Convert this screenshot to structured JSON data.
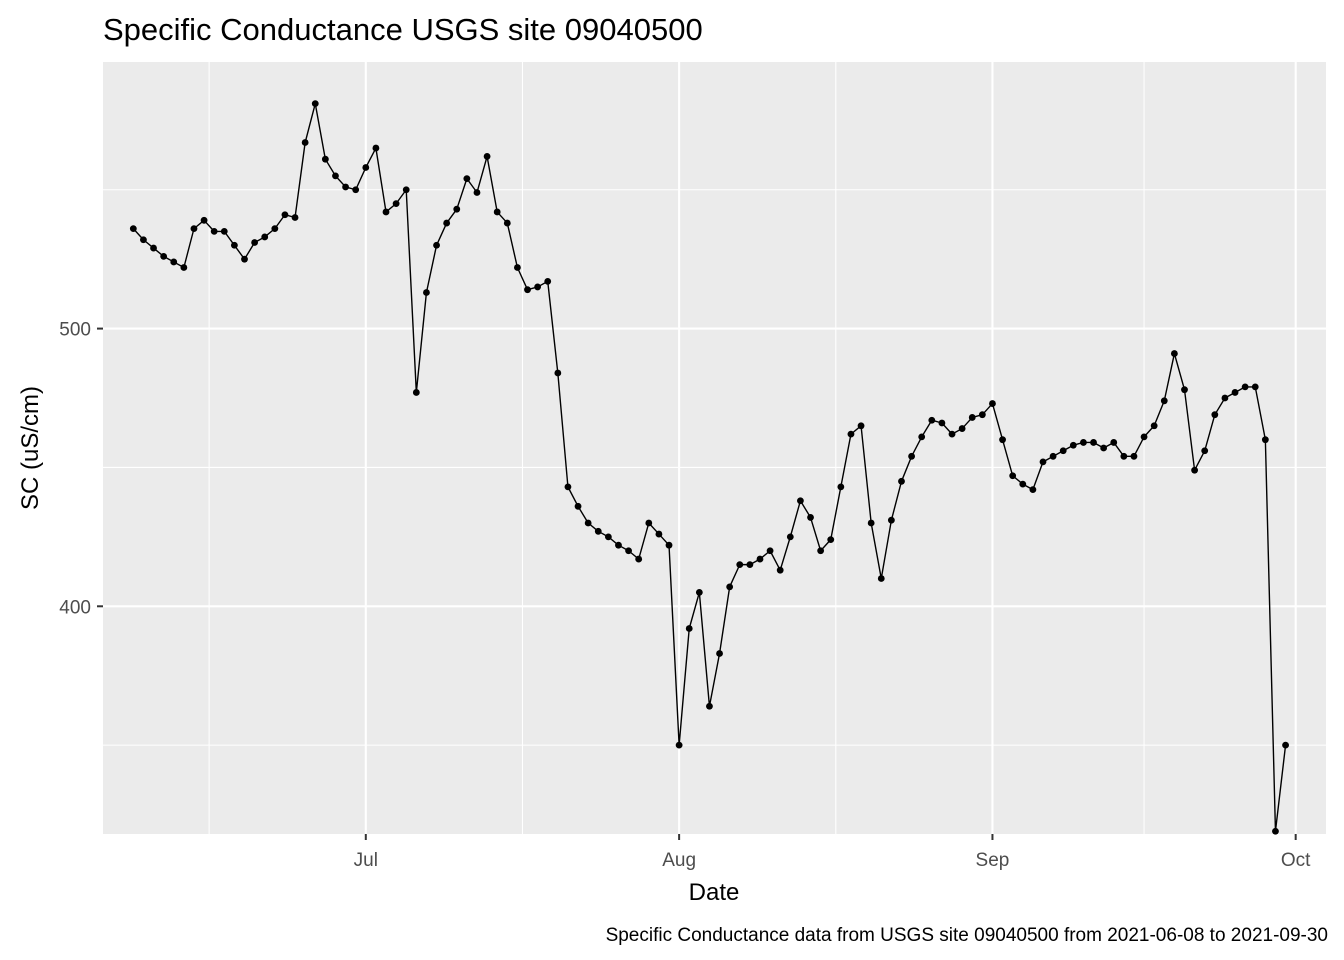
{
  "chart_data": {
    "type": "line",
    "title": "Specific Conductance USGS site 09040500",
    "xlabel": "Date",
    "ylabel": "SC (uS/cm)",
    "caption": "Specific Conductance data from USGS site 09040500 from 2021-06-08 to 2021-09-30",
    "x_ticks": [
      {
        "label": "Jul",
        "date": "2021-07-01"
      },
      {
        "label": "Aug",
        "date": "2021-08-01"
      },
      {
        "label": "Sep",
        "date": "2021-09-01"
      },
      {
        "label": "Oct",
        "date": "2021-10-01"
      }
    ],
    "y_ticks": [
      400,
      500
    ],
    "xlim": [
      "2021-06-05",
      "2021-10-04"
    ],
    "ylim": [
      318,
      596
    ],
    "grid": true,
    "series": [
      {
        "color": "#000000",
        "points": [
          [
            "2021-06-08",
            536
          ],
          [
            "2021-06-09",
            532
          ],
          [
            "2021-06-10",
            529
          ],
          [
            "2021-06-11",
            526
          ],
          [
            "2021-06-12",
            524
          ],
          [
            "2021-06-13",
            522
          ],
          [
            "2021-06-14",
            536
          ],
          [
            "2021-06-15",
            539
          ],
          [
            "2021-06-16",
            535
          ],
          [
            "2021-06-17",
            535
          ],
          [
            "2021-06-18",
            530
          ],
          [
            "2021-06-19",
            525
          ],
          [
            "2021-06-20",
            531
          ],
          [
            "2021-06-21",
            533
          ],
          [
            "2021-06-22",
            536
          ],
          [
            "2021-06-23",
            541
          ],
          [
            "2021-06-24",
            540
          ],
          [
            "2021-06-25",
            567
          ],
          [
            "2021-06-26",
            581
          ],
          [
            "2021-06-27",
            561
          ],
          [
            "2021-06-28",
            555
          ],
          [
            "2021-06-29",
            551
          ],
          [
            "2021-06-30",
            550
          ],
          [
            "2021-07-01",
            558
          ],
          [
            "2021-07-02",
            565
          ],
          [
            "2021-07-03",
            542
          ],
          [
            "2021-07-04",
            545
          ],
          [
            "2021-07-05",
            550
          ],
          [
            "2021-07-06",
            477
          ],
          [
            "2021-07-07",
            513
          ],
          [
            "2021-07-08",
            530
          ],
          [
            "2021-07-09",
            538
          ],
          [
            "2021-07-10",
            543
          ],
          [
            "2021-07-11",
            554
          ],
          [
            "2021-07-12",
            549
          ],
          [
            "2021-07-13",
            562
          ],
          [
            "2021-07-14",
            542
          ],
          [
            "2021-07-15",
            538
          ],
          [
            "2021-07-16",
            522
          ],
          [
            "2021-07-17",
            514
          ],
          [
            "2021-07-18",
            515
          ],
          [
            "2021-07-19",
            517
          ],
          [
            "2021-07-20",
            484
          ],
          [
            "2021-07-21",
            443
          ],
          [
            "2021-07-22",
            436
          ],
          [
            "2021-07-23",
            430
          ],
          [
            "2021-07-24",
            427
          ],
          [
            "2021-07-25",
            425
          ],
          [
            "2021-07-26",
            422
          ],
          [
            "2021-07-27",
            420
          ],
          [
            "2021-07-28",
            417
          ],
          [
            "2021-07-29",
            430
          ],
          [
            "2021-07-30",
            426
          ],
          [
            "2021-07-31",
            422
          ],
          [
            "2021-08-01",
            350
          ],
          [
            "2021-08-02",
            392
          ],
          [
            "2021-08-03",
            405
          ],
          [
            "2021-08-04",
            364
          ],
          [
            "2021-08-05",
            383
          ],
          [
            "2021-08-06",
            407
          ],
          [
            "2021-08-07",
            415
          ],
          [
            "2021-08-08",
            415
          ],
          [
            "2021-08-09",
            417
          ],
          [
            "2021-08-10",
            420
          ],
          [
            "2021-08-11",
            413
          ],
          [
            "2021-08-12",
            425
          ],
          [
            "2021-08-13",
            438
          ],
          [
            "2021-08-14",
            432
          ],
          [
            "2021-08-15",
            420
          ],
          [
            "2021-08-16",
            424
          ],
          [
            "2021-08-17",
            443
          ],
          [
            "2021-08-18",
            462
          ],
          [
            "2021-08-19",
            465
          ],
          [
            "2021-08-20",
            430
          ],
          [
            "2021-08-21",
            410
          ],
          [
            "2021-08-22",
            431
          ],
          [
            "2021-08-23",
            445
          ],
          [
            "2021-08-24",
            454
          ],
          [
            "2021-08-25",
            461
          ],
          [
            "2021-08-26",
            467
          ],
          [
            "2021-08-27",
            466
          ],
          [
            "2021-08-28",
            462
          ],
          [
            "2021-08-29",
            464
          ],
          [
            "2021-08-30",
            468
          ],
          [
            "2021-08-31",
            469
          ],
          [
            "2021-09-01",
            473
          ],
          [
            "2021-09-02",
            460
          ],
          [
            "2021-09-03",
            447
          ],
          [
            "2021-09-04",
            444
          ],
          [
            "2021-09-05",
            442
          ],
          [
            "2021-09-06",
            452
          ],
          [
            "2021-09-07",
            454
          ],
          [
            "2021-09-08",
            456
          ],
          [
            "2021-09-09",
            458
          ],
          [
            "2021-09-10",
            459
          ],
          [
            "2021-09-11",
            459
          ],
          [
            "2021-09-12",
            457
          ],
          [
            "2021-09-13",
            459
          ],
          [
            "2021-09-14",
            454
          ],
          [
            "2021-09-15",
            454
          ],
          [
            "2021-09-16",
            461
          ],
          [
            "2021-09-17",
            465
          ],
          [
            "2021-09-18",
            474
          ],
          [
            "2021-09-19",
            491
          ],
          [
            "2021-09-20",
            478
          ],
          [
            "2021-09-21",
            449
          ],
          [
            "2021-09-22",
            456
          ],
          [
            "2021-09-23",
            469
          ],
          [
            "2021-09-24",
            475
          ],
          [
            "2021-09-25",
            477
          ],
          [
            "2021-09-26",
            479
          ],
          [
            "2021-09-27",
            479
          ],
          [
            "2021-09-28",
            460
          ],
          [
            "2021-09-29",
            319
          ],
          [
            "2021-09-30",
            350
          ]
        ]
      }
    ]
  }
}
